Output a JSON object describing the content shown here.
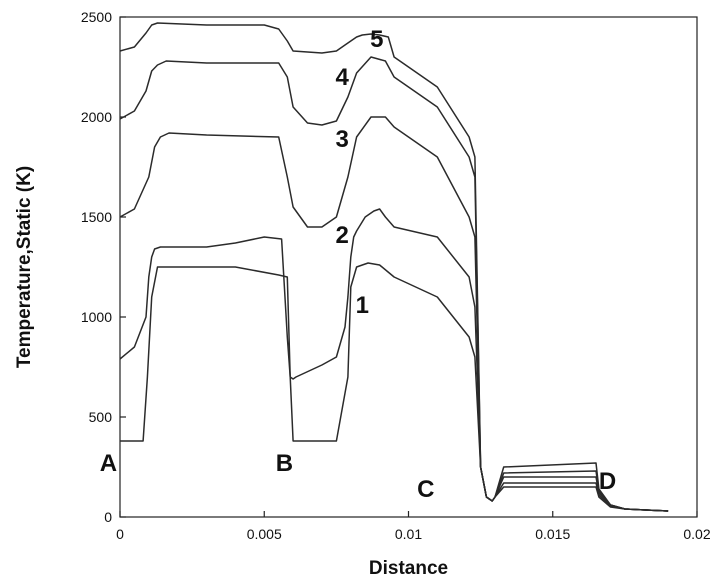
{
  "chart_data": {
    "type": "line",
    "title": "",
    "xlabel": "Distance",
    "ylabel": "Temperature,Static (K)",
    "xlim": [
      0,
      0.02
    ],
    "ylim": [
      0,
      2500
    ],
    "x_ticks": [
      0,
      0.005,
      0.01,
      0.015,
      0.02
    ],
    "x_tick_labels": [
      "0",
      "0.005",
      "0.01",
      "0.015",
      "0.02"
    ],
    "y_ticks": [
      0,
      500,
      1000,
      1500,
      2000,
      2500
    ],
    "y_tick_labels": [
      "0",
      "500",
      "1000",
      "1500",
      "2000",
      "2500"
    ],
    "grid": false,
    "line_color": "#2b2b2b",
    "curve_labels": [
      {
        "text": "1",
        "x": 0.0084,
        "y": 1020
      },
      {
        "text": "2",
        "x": 0.0077,
        "y": 1370
      },
      {
        "text": "3",
        "x": 0.0077,
        "y": 1850
      },
      {
        "text": "4",
        "x": 0.0077,
        "y": 2160
      },
      {
        "text": "5",
        "x": 0.0089,
        "y": 2350
      }
    ],
    "point_labels": [
      {
        "text": "A",
        "x": -0.0004,
        "y": 230
      },
      {
        "text": "B",
        "x": 0.0057,
        "y": 230
      },
      {
        "text": "C",
        "x": 0.0106,
        "y": 100
      },
      {
        "text": "D",
        "x": 0.0169,
        "y": 140
      }
    ],
    "series": [
      {
        "x": [
          0,
          0.0008,
          0.00095,
          0.0011,
          0.0013,
          0.004,
          0.0055,
          0.0058,
          0.0059,
          0.006,
          0.0075,
          0.0079,
          0.008,
          0.0082,
          0.0084,
          0.0086,
          0.009,
          0.0095,
          0.011,
          0.0121,
          0.0123,
          0.0125,
          0.0127,
          0.0129,
          0.013,
          0.0133,
          0.0165,
          0.0166,
          0.017,
          0.0175,
          0.019
        ],
        "y": [
          380,
          380,
          700,
          1100,
          1250,
          1250,
          1210,
          1200,
          700,
          380,
          380,
          700,
          1150,
          1250,
          1260,
          1270,
          1260,
          1200,
          1100,
          900,
          800,
          250,
          100,
          80,
          100,
          150,
          150,
          100,
          50,
          40,
          30
        ]
      },
      {
        "x": [
          0,
          0.0005,
          0.0009,
          0.001,
          0.0011,
          0.0012,
          0.0014,
          0.003,
          0.004,
          0.005,
          0.0056,
          0.0058,
          0.0059,
          0.006,
          0.0061,
          0.007,
          0.0075,
          0.0078,
          0.0079,
          0.008,
          0.0081,
          0.0082,
          0.0085,
          0.0088,
          0.009,
          0.0092,
          0.0095,
          0.011,
          0.0121,
          0.0123,
          0.0125,
          0.0127,
          0.0129,
          0.013,
          0.0133,
          0.0165,
          0.0166,
          0.017,
          0.0175,
          0.019
        ],
        "y": [
          790,
          850,
          1000,
          1200,
          1300,
          1340,
          1350,
          1350,
          1370,
          1400,
          1390,
          900,
          700,
          690,
          700,
          760,
          800,
          950,
          1100,
          1300,
          1400,
          1430,
          1500,
          1530,
          1540,
          1500,
          1450,
          1400,
          1200,
          1050,
          250,
          100,
          80,
          100,
          170,
          170,
          110,
          55,
          40,
          30
        ]
      },
      {
        "x": [
          0,
          0.0005,
          0.001,
          0.0012,
          0.0014,
          0.0017,
          0.003,
          0.0055,
          0.0058,
          0.006,
          0.0065,
          0.007,
          0.0075,
          0.0079,
          0.0082,
          0.0087,
          0.0092,
          0.0095,
          0.011,
          0.0121,
          0.0123,
          0.0125,
          0.0127,
          0.0129,
          0.013,
          0.0133,
          0.0165,
          0.0166,
          0.017,
          0.0175,
          0.019
        ],
        "y": [
          1500,
          1540,
          1700,
          1850,
          1900,
          1920,
          1910,
          1900,
          1700,
          1550,
          1450,
          1450,
          1500,
          1700,
          1900,
          2000,
          2000,
          1950,
          1800,
          1500,
          1400,
          250,
          100,
          80,
          100,
          200,
          200,
          120,
          60,
          40,
          30
        ]
      },
      {
        "x": [
          0,
          0.0005,
          0.0009,
          0.0011,
          0.0013,
          0.0016,
          0.003,
          0.0055,
          0.0058,
          0.006,
          0.0065,
          0.007,
          0.0075,
          0.0079,
          0.0082,
          0.0087,
          0.0092,
          0.0095,
          0.011,
          0.0121,
          0.0123,
          0.0125,
          0.0127,
          0.0129,
          0.013,
          0.0133,
          0.0165,
          0.0166,
          0.017,
          0.0175,
          0.019
        ],
        "y": [
          1990,
          2030,
          2130,
          2230,
          2260,
          2280,
          2270,
          2270,
          2200,
          2050,
          1970,
          1960,
          1980,
          2100,
          2220,
          2300,
          2280,
          2200,
          2050,
          1800,
          1700,
          250,
          100,
          80,
          100,
          220,
          230,
          130,
          60,
          40,
          30
        ]
      },
      {
        "x": [
          0,
          0.0005,
          0.0009,
          0.0011,
          0.0013,
          0.003,
          0.005,
          0.0055,
          0.0058,
          0.006,
          0.007,
          0.0075,
          0.0078,
          0.0082,
          0.0084,
          0.0087,
          0.009,
          0.0093,
          0.0095,
          0.011,
          0.0121,
          0.0123,
          0.0125,
          0.0127,
          0.0129,
          0.013,
          0.0133,
          0.0165,
          0.0166,
          0.017,
          0.0175,
          0.019
        ],
        "y": [
          2330,
          2350,
          2420,
          2460,
          2470,
          2460,
          2460,
          2440,
          2380,
          2330,
          2320,
          2330,
          2360,
          2400,
          2410,
          2415,
          2410,
          2400,
          2300,
          2150,
          1900,
          1800,
          250,
          100,
          80,
          100,
          250,
          270,
          140,
          60,
          40,
          30
        ]
      }
    ]
  }
}
